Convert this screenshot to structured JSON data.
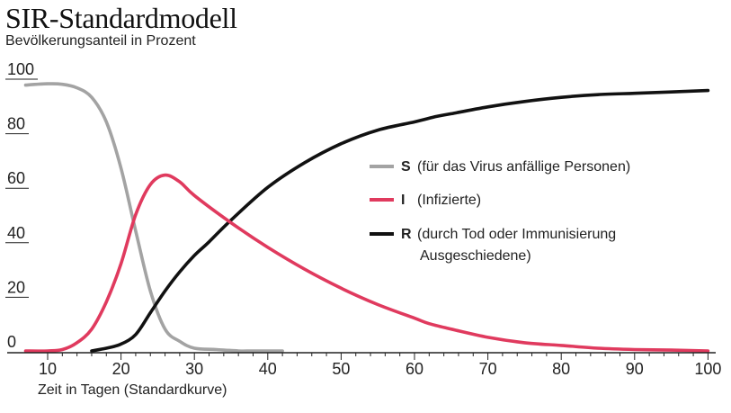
{
  "chart_data": {
    "type": "line",
    "title": "SIR-Standardmodell",
    "ylabel": "Bevölkerungsanteil in Prozent",
    "xlabel": "Zeit in Tagen (Standardkurve)",
    "xlim": [
      6,
      101
    ],
    "ylim": [
      0,
      100
    ],
    "x_ticks": [
      10,
      20,
      30,
      40,
      50,
      60,
      70,
      80,
      90,
      100
    ],
    "y_ticks": [
      0,
      20,
      40,
      60,
      80,
      100
    ],
    "grid": false,
    "legend_position": "right",
    "series": [
      {
        "key": "S",
        "name": "(für das Virus anfällige Personen)",
        "color": "#a3a3a3",
        "points": [
          [
            7,
            97.5
          ],
          [
            10,
            98
          ],
          [
            12,
            97.8
          ],
          [
            14,
            96.5
          ],
          [
            16,
            93
          ],
          [
            18,
            84
          ],
          [
            20,
            67
          ],
          [
            22,
            44
          ],
          [
            24,
            22
          ],
          [
            26,
            8
          ],
          [
            28,
            3.5
          ],
          [
            30,
            1
          ],
          [
            33,
            0.5
          ],
          [
            36,
            0
          ],
          [
            38,
            0
          ],
          [
            42,
            0
          ]
        ]
      },
      {
        "key": "I",
        "name": "(Infizierte)",
        "color": "#e03a5e",
        "points": [
          [
            7,
            0
          ],
          [
            10,
            0
          ],
          [
            12,
            0.5
          ],
          [
            14,
            3
          ],
          [
            16,
            8
          ],
          [
            18,
            18
          ],
          [
            20,
            32
          ],
          [
            22,
            50
          ],
          [
            24,
            61
          ],
          [
            26,
            64.5
          ],
          [
            28,
            62
          ],
          [
            30,
            57
          ],
          [
            35,
            47
          ],
          [
            40,
            38
          ],
          [
            45,
            30
          ],
          [
            50,
            23
          ],
          [
            55,
            17
          ],
          [
            60,
            12
          ],
          [
            62,
            10
          ],
          [
            65,
            8
          ],
          [
            70,
            5
          ],
          [
            75,
            3
          ],
          [
            80,
            2
          ],
          [
            85,
            1
          ],
          [
            90,
            0.5
          ],
          [
            95,
            0.3
          ],
          [
            100,
            0
          ]
        ]
      },
      {
        "key": "R",
        "name": "(durch Tod oder Immunisierung",
        "name_line2": "Ausgeschiedene)",
        "color": "#111111",
        "points": [
          [
            16,
            0
          ],
          [
            18,
            1
          ],
          [
            20,
            2.5
          ],
          [
            22,
            6
          ],
          [
            24,
            14
          ],
          [
            26,
            22
          ],
          [
            28,
            29
          ],
          [
            30,
            35
          ],
          [
            32,
            40
          ],
          [
            35,
            48
          ],
          [
            40,
            60
          ],
          [
            45,
            69
          ],
          [
            50,
            76
          ],
          [
            55,
            81
          ],
          [
            60,
            84
          ],
          [
            63,
            86
          ],
          [
            65,
            87
          ],
          [
            70,
            89.5
          ],
          [
            75,
            91.5
          ],
          [
            80,
            93
          ],
          [
            85,
            94
          ],
          [
            90,
            94.5
          ],
          [
            95,
            95
          ],
          [
            100,
            95.5
          ]
        ]
      }
    ]
  }
}
